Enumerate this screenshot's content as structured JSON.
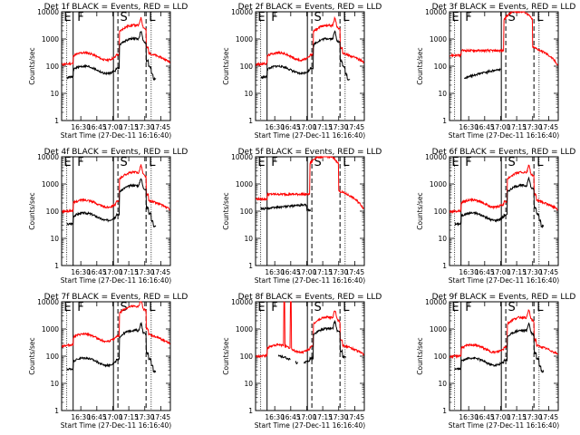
{
  "chart_data": [
    {
      "type": "line",
      "title": "Det 1f BLACK = Events, RED = LLD",
      "ylabel": "Counts/sec",
      "xlabel": "Start Time (27-Dec-11 16:16:40)",
      "yscale": "log",
      "ylim": [
        1,
        10000
      ],
      "xlim": [
        16.2,
        17.9
      ],
      "x_tick_labels": [
        "16:30",
        "16:45",
        "17:00",
        "17:15",
        "17:30",
        "17:45"
      ],
      "y_tick_labels": [
        "1",
        "10",
        "100",
        "1000",
        "10000"
      ],
      "phase_letters": [
        "E",
        "F",
        "S",
        "L"
      ],
      "series": [
        {
          "color": "#ff0000",
          "profile": "burst",
          "base": 120,
          "drop": 1.0
        },
        {
          "color": "#000000",
          "profile": "events",
          "base": 70,
          "drop": 0.5
        }
      ]
    },
    {
      "type": "line",
      "title": "Det 2f BLACK = Events, RED = LLD",
      "ylabel": "Counts/sec",
      "xlabel": "Start Time (27-Dec-11 16:16:40)",
      "yscale": "log",
      "ylim": [
        1,
        10000
      ],
      "xlim": [
        16.2,
        17.9
      ],
      "x_tick_labels": [
        "16:30",
        "16:45",
        "17:00",
        "17:15",
        "17:30",
        "17:45"
      ],
      "y_tick_labels": [
        "1",
        "10",
        "100",
        "1000",
        "10000"
      ],
      "phase_letters": [
        "E",
        "F",
        "S",
        "L"
      ],
      "series": [
        {
          "color": "#ff0000",
          "profile": "burst",
          "base": 120,
          "drop": 1.0
        },
        {
          "color": "#000000",
          "profile": "events",
          "base": 70,
          "drop": 0.5
        }
      ]
    },
    {
      "type": "line",
      "title": "Det 3f BLACK = Events, RED = LLD",
      "ylabel": "Counts/sec",
      "xlabel": "Start Time (27-Dec-11 16:16:40)",
      "yscale": "log",
      "ylim": [
        1,
        10000
      ],
      "xlim": [
        16.2,
        17.9
      ],
      "x_tick_labels": [
        "16:30",
        "16:45",
        "17:00",
        "17:15",
        "17:30",
        "17:45"
      ],
      "y_tick_labels": [
        "1",
        "10",
        "100",
        "1000",
        "10000"
      ],
      "phase_letters": [
        "E",
        "F",
        "S",
        "L"
      ],
      "series": [
        {
          "color": "#ff0000",
          "profile": "saturated",
          "base": 250,
          "drop": 1.0
        },
        {
          "color": "#000000",
          "profile": "events_late",
          "base": 60,
          "drop": 0.3
        }
      ]
    },
    {
      "type": "line",
      "title": "Det 4f BLACK = Events, RED = LLD",
      "ylabel": "Counts/sec",
      "xlabel": "Start Time (27-Dec-11 16:16:40)",
      "yscale": "log",
      "ylim": [
        1,
        10000
      ],
      "xlim": [
        16.2,
        17.9
      ],
      "x_tick_labels": [
        "16:30",
        "16:45",
        "17:00",
        "17:15",
        "17:30",
        "17:45"
      ],
      "y_tick_labels": [
        "1",
        "10",
        "100",
        "1000",
        "10000"
      ],
      "phase_letters": [
        "E",
        "F",
        "S",
        "L"
      ],
      "series": [
        {
          "color": "#ff0000",
          "profile": "burst",
          "base": 100,
          "drop": 1.0
        },
        {
          "color": "#000000",
          "profile": "events",
          "base": 60,
          "drop": 0.5
        }
      ]
    },
    {
      "type": "line",
      "title": "Det 5f BLACK = Events, RED = LLD",
      "ylabel": "Counts/sec",
      "xlabel": "Start Time (27-Dec-11 16:16:40)",
      "yscale": "log",
      "ylim": [
        1,
        10000
      ],
      "xlim": [
        16.2,
        17.9
      ],
      "x_tick_labels": [
        "16:30",
        "16:45",
        "17:00",
        "17:15",
        "17:30",
        "17:45"
      ],
      "y_tick_labels": [
        "1",
        "10",
        "100",
        "1000",
        "10000"
      ],
      "phase_letters": [
        "E",
        "F",
        "S",
        "L"
      ],
      "series": [
        {
          "color": "#ff0000",
          "profile": "saturated",
          "base": 280,
          "drop": 1.0
        },
        {
          "color": "#000000",
          "profile": "events_high",
          "base": 150,
          "drop": 0.3
        }
      ]
    },
    {
      "type": "line",
      "title": "Det 6f BLACK = Events, RED = LLD",
      "ylabel": "Counts/sec",
      "xlabel": "Start Time (27-Dec-11 16:16:40)",
      "yscale": "log",
      "ylim": [
        1,
        10000
      ],
      "xlim": [
        16.2,
        17.9
      ],
      "x_tick_labels": [
        "16:30",
        "16:45",
        "17:00",
        "17:15",
        "17:30",
        "17:45"
      ],
      "y_tick_labels": [
        "1",
        "10",
        "100",
        "1000",
        "10000"
      ],
      "phase_letters": [
        "E",
        "F",
        "S",
        "L"
      ],
      "series": [
        {
          "color": "#ff0000",
          "profile": "burst",
          "base": 100,
          "drop": 1.0
        },
        {
          "color": "#000000",
          "profile": "events",
          "base": 60,
          "drop": 0.5
        }
      ]
    },
    {
      "type": "line",
      "title": "Det 7f BLACK = Events, RED = LLD",
      "ylabel": "Counts/sec",
      "xlabel": "Start Time (27-Dec-11 16:16:40)",
      "yscale": "log",
      "ylim": [
        1,
        10000
      ],
      "xlim": [
        16.2,
        17.9
      ],
      "x_tick_labels": [
        "16:30",
        "16:45",
        "17:00",
        "17:15",
        "17:30",
        "17:45"
      ],
      "y_tick_labels": [
        "1",
        "10",
        "100",
        "1000",
        "10000"
      ],
      "phase_letters": [
        "E",
        "F",
        "S",
        "L"
      ],
      "series": [
        {
          "color": "#ff0000",
          "profile": "burst",
          "base": 250,
          "drop": 1.0
        },
        {
          "color": "#000000",
          "profile": "events",
          "base": 60,
          "drop": 0.4
        }
      ]
    },
    {
      "type": "line",
      "title": "Det 8f BLACK = Events, RED = LLD",
      "ylabel": "Counts/sec",
      "xlabel": "Start Time (27-Dec-11 16:16:40)",
      "yscale": "log",
      "ylim": [
        1,
        10000
      ],
      "xlim": [
        16.2,
        17.9
      ],
      "x_tick_labels": [
        "16:30",
        "16:45",
        "17:00",
        "17:15",
        "17:30",
        "17:45"
      ],
      "y_tick_labels": [
        "1",
        "10",
        "100",
        "1000",
        "10000"
      ],
      "phase_letters": [
        "E",
        "F",
        "S",
        "L"
      ],
      "series": [
        {
          "color": "#ff0000",
          "profile": "spiky",
          "base": 100,
          "drop": 1.0
        },
        {
          "color": "#000000",
          "profile": "events_gappy",
          "base": 70,
          "drop": 0.5
        }
      ]
    },
    {
      "type": "line",
      "title": "Det 9f BLACK = Events, RED = LLD",
      "ylabel": "Counts/sec",
      "xlabel": "Start Time (27-Dec-11 16:16:40)",
      "yscale": "log",
      "ylim": [
        1,
        10000
      ],
      "xlim": [
        16.2,
        17.9
      ],
      "x_tick_labels": [
        "16:30",
        "16:45",
        "17:00",
        "17:15",
        "17:30",
        "17:45"
      ],
      "y_tick_labels": [
        "1",
        "10",
        "100",
        "1000",
        "10000"
      ],
      "phase_letters": [
        "E",
        "F",
        "S",
        "L"
      ],
      "series": [
        {
          "color": "#ff0000",
          "profile": "burst",
          "base": 100,
          "drop": 1.0
        },
        {
          "color": "#000000",
          "profile": "events",
          "base": 60,
          "drop": 0.5
        }
      ]
    }
  ]
}
